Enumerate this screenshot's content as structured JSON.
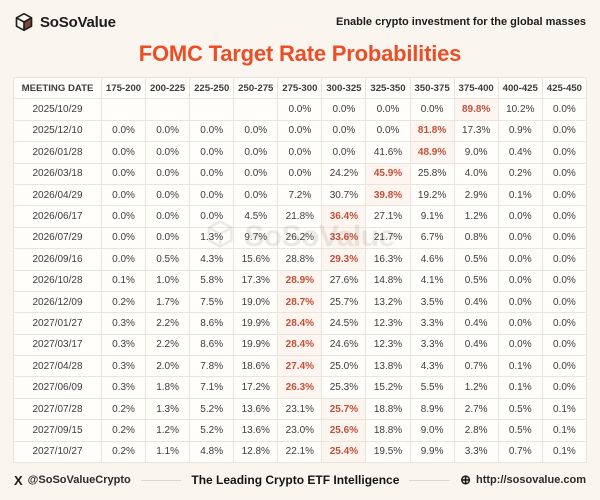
{
  "header": {
    "brand": "SoSoValue",
    "tagline": "Enable crypto investment for the global masses",
    "title": "FOMC Target Rate Probabilities"
  },
  "colors": {
    "accent": "#ea4f27",
    "highlight_text": "#c1523a",
    "page_background": "#faf5ee",
    "table_background": "#fffefb"
  },
  "icons": {
    "x_icon": "X",
    "globe_icon": "⊕"
  },
  "watermark": {
    "text": "SoSoValue"
  },
  "chart_data": {
    "type": "table",
    "title": "FOMC Target Rate Probabilities",
    "date_header": "MEETING DATE",
    "columns": [
      "175-200",
      "200-225",
      "225-250",
      "250-275",
      "275-300",
      "300-325",
      "325-350",
      "350-375",
      "375-400",
      "400-425",
      "425-450"
    ],
    "highlight_note": "highlight_index marks the orange (most probable) cell per row",
    "rows": [
      {
        "date": "2025/10/29",
        "values": [
          "",
          "",
          "",
          "",
          "0.0%",
          "0.0%",
          "0.0%",
          "0.0%",
          "89.8%",
          "10.2%",
          "0.0%"
        ],
        "highlight_index": 8
      },
      {
        "date": "2025/12/10",
        "values": [
          "0.0%",
          "0.0%",
          "0.0%",
          "0.0%",
          "0.0%",
          "0.0%",
          "0.0%",
          "81.8%",
          "17.3%",
          "0.9%",
          "0.0%"
        ],
        "highlight_index": 7
      },
      {
        "date": "2026/01/28",
        "values": [
          "0.0%",
          "0.0%",
          "0.0%",
          "0.0%",
          "0.0%",
          "0.0%",
          "41.6%",
          "48.9%",
          "9.0%",
          "0.4%",
          "0.0%"
        ],
        "highlight_index": 7
      },
      {
        "date": "2026/03/18",
        "values": [
          "0.0%",
          "0.0%",
          "0.0%",
          "0.0%",
          "0.0%",
          "24.2%",
          "45.9%",
          "25.8%",
          "4.0%",
          "0.2%",
          "0.0%"
        ],
        "highlight_index": 6
      },
      {
        "date": "2026/04/29",
        "values": [
          "0.0%",
          "0.0%",
          "0.0%",
          "0.0%",
          "7.2%",
          "30.7%",
          "39.8%",
          "19.2%",
          "2.9%",
          "0.1%",
          "0.0%"
        ],
        "highlight_index": 6
      },
      {
        "date": "2026/06/17",
        "values": [
          "0.0%",
          "0.0%",
          "0.0%",
          "4.5%",
          "21.8%",
          "36.4%",
          "27.1%",
          "9.1%",
          "1.2%",
          "0.0%",
          "0.0%"
        ],
        "highlight_index": 5
      },
      {
        "date": "2026/07/29",
        "values": [
          "0.0%",
          "0.0%",
          "1.3%",
          "9.7%",
          "26.2%",
          "33.6%",
          "21.7%",
          "6.7%",
          "0.8%",
          "0.0%",
          "0.0%"
        ],
        "highlight_index": 5
      },
      {
        "date": "2026/09/16",
        "values": [
          "0.0%",
          "0.5%",
          "4.3%",
          "15.6%",
          "28.8%",
          "29.3%",
          "16.3%",
          "4.6%",
          "0.5%",
          "0.0%",
          "0.0%"
        ],
        "highlight_index": 5
      },
      {
        "date": "2026/10/28",
        "values": [
          "0.1%",
          "1.0%",
          "5.8%",
          "17.3%",
          "28.9%",
          "27.6%",
          "14.8%",
          "4.1%",
          "0.5%",
          "0.0%",
          "0.0%"
        ],
        "highlight_index": 4
      },
      {
        "date": "2026/12/09",
        "values": [
          "0.2%",
          "1.7%",
          "7.5%",
          "19.0%",
          "28.7%",
          "25.7%",
          "13.2%",
          "3.5%",
          "0.4%",
          "0.0%",
          "0.0%"
        ],
        "highlight_index": 4
      },
      {
        "date": "2027/01/27",
        "values": [
          "0.3%",
          "2.2%",
          "8.6%",
          "19.9%",
          "28.4%",
          "24.5%",
          "12.3%",
          "3.3%",
          "0.4%",
          "0.0%",
          "0.0%"
        ],
        "highlight_index": 4
      },
      {
        "date": "2027/03/17",
        "values": [
          "0.3%",
          "2.2%",
          "8.6%",
          "19.9%",
          "28.4%",
          "24.6%",
          "12.3%",
          "3.3%",
          "0.4%",
          "0.0%",
          "0.0%"
        ],
        "highlight_index": 4
      },
      {
        "date": "2027/04/28",
        "values": [
          "0.3%",
          "2.0%",
          "7.8%",
          "18.6%",
          "27.4%",
          "25.0%",
          "13.8%",
          "4.3%",
          "0.7%",
          "0.1%",
          "0.0%"
        ],
        "highlight_index": 4
      },
      {
        "date": "2027/06/09",
        "values": [
          "0.3%",
          "1.8%",
          "7.1%",
          "17.2%",
          "26.3%",
          "25.3%",
          "15.2%",
          "5.5%",
          "1.2%",
          "0.1%",
          "0.0%"
        ],
        "highlight_index": 4
      },
      {
        "date": "2027/07/28",
        "values": [
          "0.2%",
          "1.3%",
          "5.2%",
          "13.6%",
          "23.1%",
          "25.7%",
          "18.8%",
          "8.9%",
          "2.7%",
          "0.5%",
          "0.1%"
        ],
        "highlight_index": 5
      },
      {
        "date": "2027/09/15",
        "values": [
          "0.2%",
          "1.2%",
          "5.2%",
          "13.6%",
          "23.0%",
          "25.6%",
          "18.8%",
          "9.0%",
          "2.8%",
          "0.5%",
          "0.1%"
        ],
        "highlight_index": 5
      },
      {
        "date": "2027/10/27",
        "values": [
          "0.2%",
          "1.1%",
          "4.8%",
          "12.8%",
          "22.1%",
          "25.4%",
          "19.5%",
          "9.9%",
          "3.3%",
          "0.7%",
          "0.1%"
        ],
        "highlight_index": 5
      }
    ]
  },
  "footer": {
    "twitter_handle": "@SoSoValueCrypto",
    "slogan": "The Leading Crypto ETF Intelligence",
    "website": "http://sosovalue.com"
  }
}
